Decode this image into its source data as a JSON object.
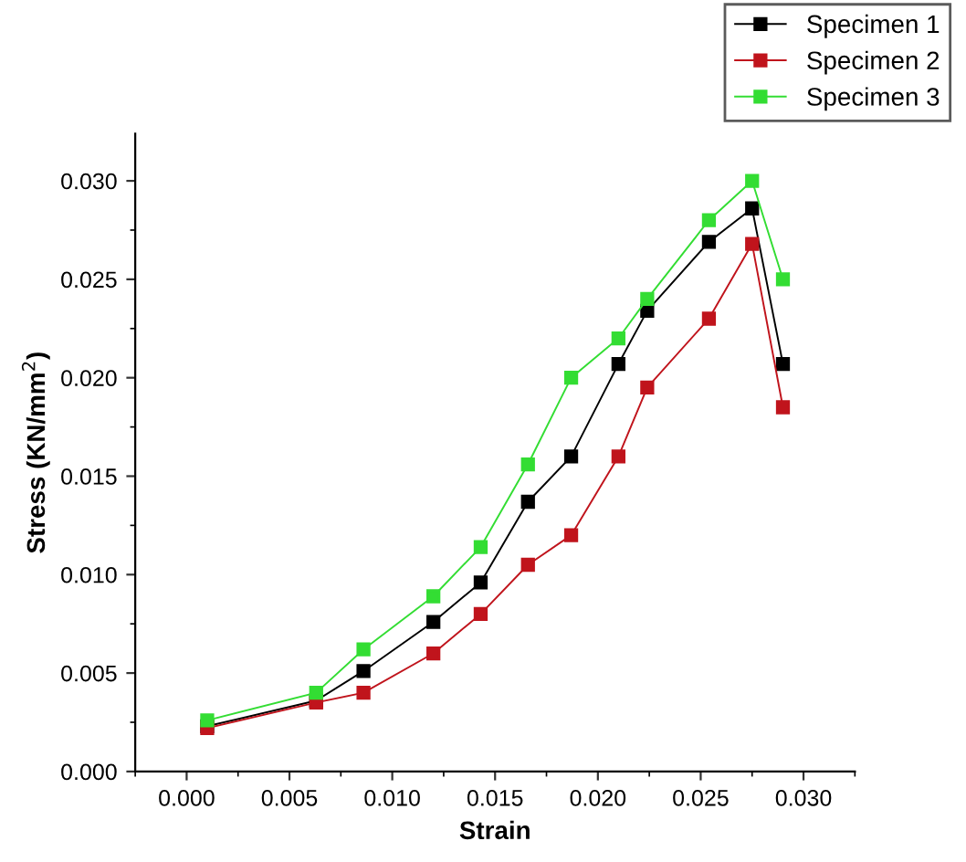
{
  "chart_data": {
    "type": "line",
    "xlabel": "Strain",
    "ylabel": "Stress (KN/mm$^{2}$)",
    "x": [
      0.001,
      0.0063,
      0.0086,
      0.012,
      0.0143,
      0.0166,
      0.0187,
      0.021,
      0.0224,
      0.0254,
      0.0275,
      0.029
    ],
    "series": [
      {
        "name": "Specimen 1",
        "color": "#000000",
        "values": [
          0.0023,
          0.0036,
          0.0051,
          0.0076,
          0.0096,
          0.0137,
          0.016,
          0.0207,
          0.0234,
          0.0269,
          0.0286,
          0.0207
        ]
      },
      {
        "name": "Specimen 2",
        "color": "#c0141c",
        "values": [
          0.0022,
          0.0035,
          0.004,
          0.006,
          0.008,
          0.0105,
          0.012,
          0.016,
          0.0195,
          0.023,
          0.0268,
          0.0185
        ]
      },
      {
        "name": "Specimen 3",
        "color": "#33dd33",
        "values": [
          0.0026,
          0.004,
          0.0062,
          0.0089,
          0.0114,
          0.0156,
          0.02,
          0.022,
          0.024,
          0.028,
          0.03,
          0.025
        ]
      }
    ],
    "xlim": [
      -0.0025,
      0.0325
    ],
    "ylim": [
      0,
      0.0324
    ],
    "xticks": [
      {
        "value": 0,
        "label": "0.000"
      },
      {
        "value": 0.005,
        "label": "0.005"
      },
      {
        "value": 0.01,
        "label": "0.010"
      },
      {
        "value": 0.015,
        "label": "0.015"
      },
      {
        "value": 0.02,
        "label": "0.020"
      },
      {
        "value": 0.025,
        "label": "0.025"
      },
      {
        "value": 0.03,
        "label": "0.030"
      }
    ],
    "yticks": [
      {
        "value": 0,
        "label": "0.000"
      },
      {
        "value": 0.005,
        "label": "0.005"
      },
      {
        "value": 0.01,
        "label": "0.010"
      },
      {
        "value": 0.015,
        "label": "0.015"
      },
      {
        "value": 0.02,
        "label": "0.020"
      },
      {
        "value": 0.025,
        "label": "0.025"
      },
      {
        "value": 0.03,
        "label": "0.030"
      }
    ],
    "marker": "square",
    "line_style": "solid",
    "legend": "top right",
    "grid": false
  }
}
